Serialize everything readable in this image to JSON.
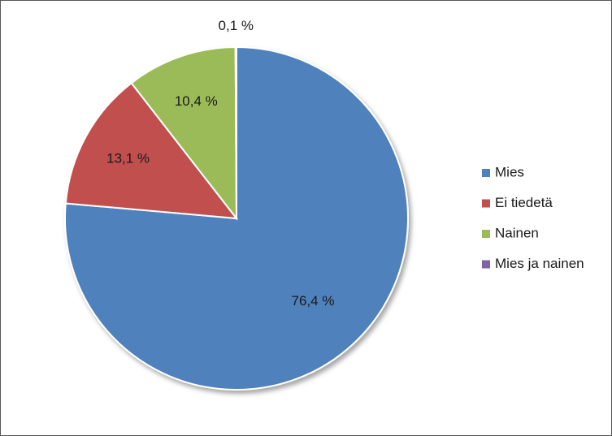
{
  "chart_data": {
    "type": "pie",
    "categories": [
      "Mies",
      "Ei tiedetä",
      "Nainen",
      "Mies ja nainen"
    ],
    "values": [
      76.4,
      13.1,
      10.4,
      0.1
    ],
    "data_labels": [
      "76,4 %",
      "13,1 %",
      "10,4 %",
      "0,1 %"
    ],
    "colors": [
      "#4F81BD",
      "#C0504D",
      "#9BBB59",
      "#8064A2"
    ],
    "start_angle_deg": 0,
    "direction": "clockwise",
    "legend_position": "right"
  }
}
